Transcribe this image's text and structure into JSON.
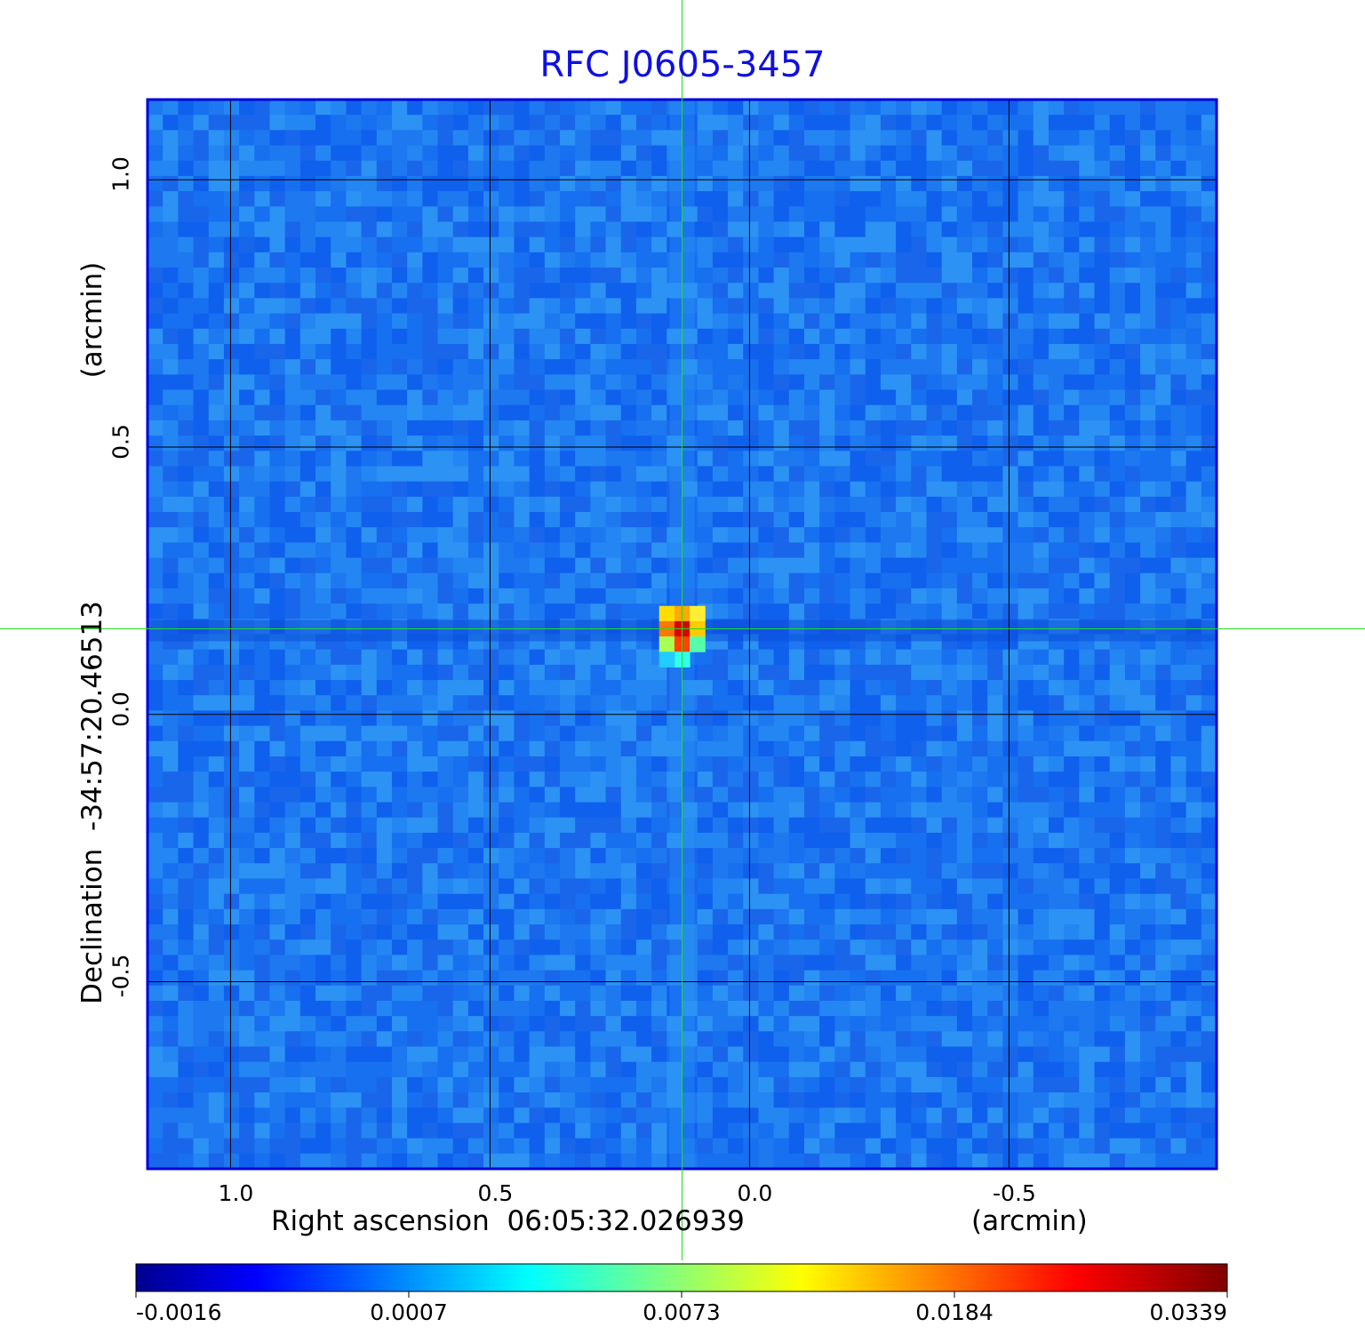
{
  "chart_data": {
    "type": "heatmap",
    "title": "RFC J0605-3457",
    "xlabel": "Right ascension  06:05:32.026939",
    "xlabel_unit": "(arcmin)",
    "ylabel": "Declination  -34:57:20.46513",
    "ylabel_unit": "(arcmin)",
    "xlim": [
      1.16,
      -0.9
    ],
    "ylim": [
      -0.85,
      1.15
    ],
    "x_ticks": [
      1.0,
      0.5,
      0.0,
      -0.5
    ],
    "x_tick_labels": [
      "1.0",
      "0.5",
      "0.0",
      "-0.5"
    ],
    "y_ticks": [
      1.0,
      0.5,
      0.0,
      -0.5
    ],
    "y_tick_labels": [
      "1.0",
      "0.5",
      "0.0",
      "-0.5"
    ],
    "grid": true,
    "crosshair": {
      "x": 0.13,
      "y": 0.16
    },
    "peak": {
      "x": 0.13,
      "y": 0.16,
      "value": 0.0339
    },
    "colorbar": {
      "ticks": [
        -0.0016,
        0.0007,
        0.0073,
        0.0184,
        0.0339
      ],
      "tick_labels": [
        "-0.0016",
        "0.0007",
        "0.0073",
        "0.0184",
        "0.0339"
      ],
      "colormap": "jet"
    },
    "colors": {
      "title": "#1010e0",
      "frame": "#0000dd",
      "crosshair": "#22dd22",
      "grid": "#000000",
      "background_field": "#1e78f0"
    }
  }
}
